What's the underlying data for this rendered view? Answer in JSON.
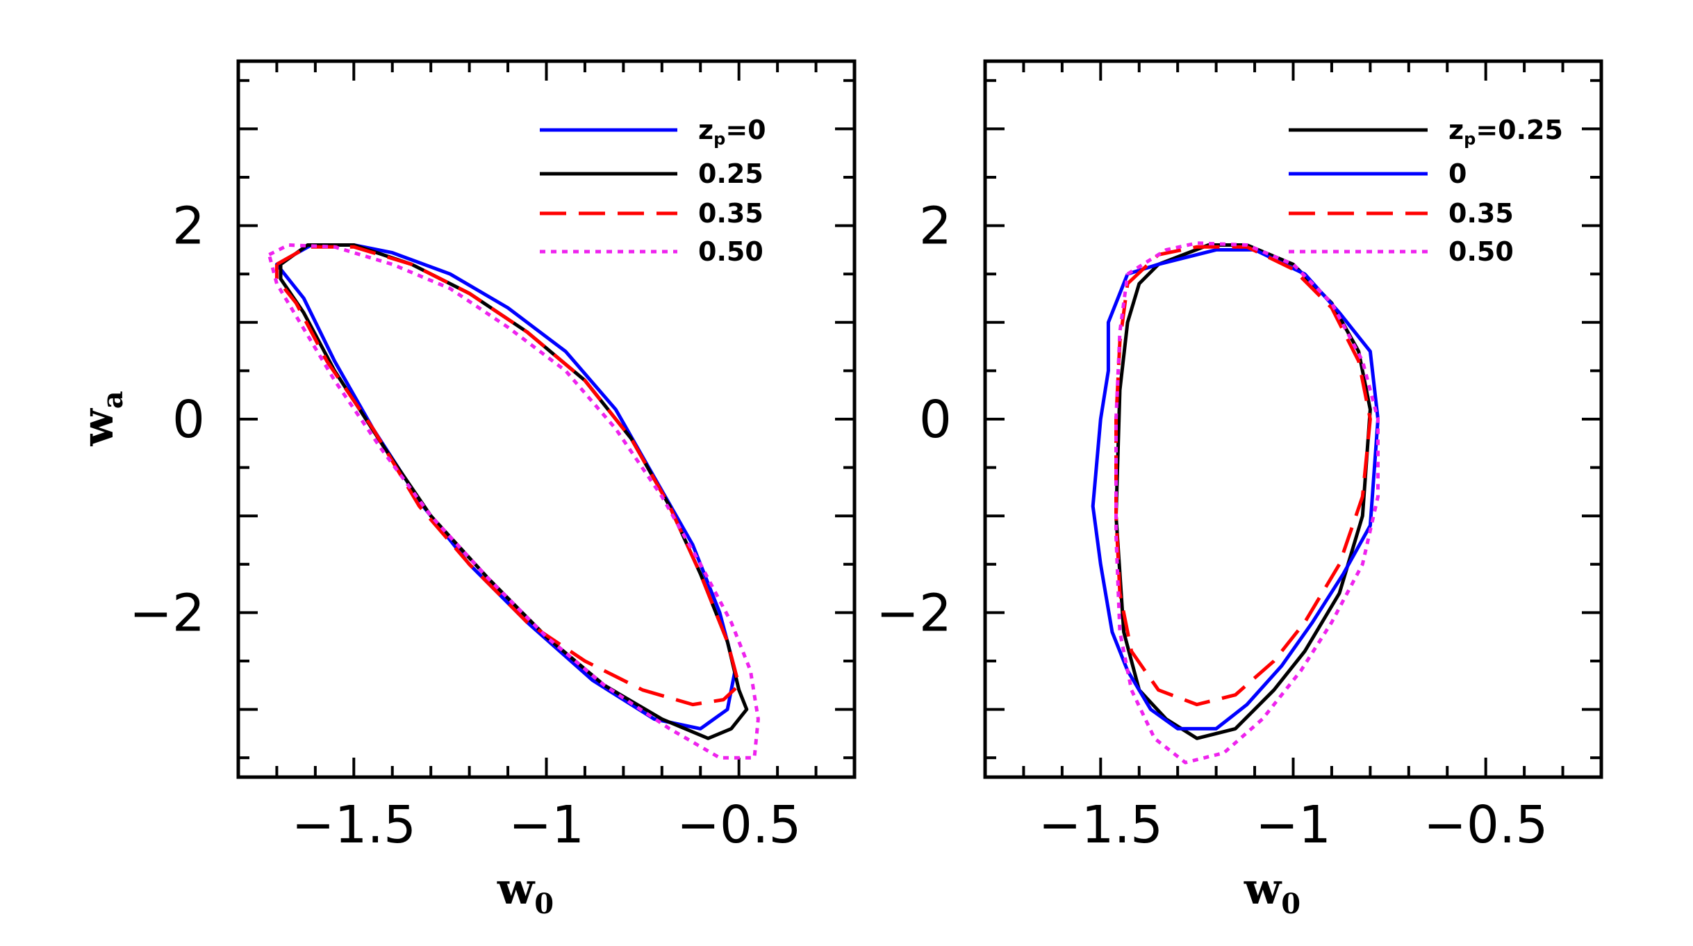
{
  "chart_data": [
    {
      "type": "line",
      "panel": "left",
      "xlabel": "w",
      "xlabel_sub": "0",
      "ylabel": "w",
      "ylabel_sub": "a",
      "xlim": [
        -1.8,
        -0.2
      ],
      "ylim": [
        -3.7,
        3.7
      ],
      "xticks": [
        -1.5,
        -1,
        -0.5
      ],
      "xtick_labels": [
        "−1.5",
        "−1",
        "−0.5"
      ],
      "yticks": [
        -2,
        0,
        2
      ],
      "ytick_labels": [
        "−2",
        "0",
        "2"
      ],
      "legend_position": "top-right",
      "series": [
        {
          "name": "zp=0",
          "label_main": "z",
          "label_sub": "p",
          "label_tail": "=0",
          "color": "#0000ff",
          "dash": "solid",
          "points": [
            [
              -1.61,
              1.8
            ],
            [
              -1.5,
              1.8
            ],
            [
              -1.4,
              1.72
            ],
            [
              -1.25,
              1.5
            ],
            [
              -1.1,
              1.15
            ],
            [
              -0.95,
              0.7
            ],
            [
              -0.82,
              0.1
            ],
            [
              -0.72,
              -0.6
            ],
            [
              -0.62,
              -1.3
            ],
            [
              -0.55,
              -2.0
            ],
            [
              -0.51,
              -2.6
            ],
            [
              -0.53,
              -3.0
            ],
            [
              -0.6,
              -3.2
            ],
            [
              -0.72,
              -3.1
            ],
            [
              -0.88,
              -2.7
            ],
            [
              -1.05,
              -2.1
            ],
            [
              -1.2,
              -1.5
            ],
            [
              -1.32,
              -0.9
            ],
            [
              -1.45,
              -0.1
            ],
            [
              -1.55,
              0.6
            ],
            [
              -1.63,
              1.25
            ],
            [
              -1.7,
              1.6
            ],
            [
              -1.61,
              1.8
            ]
          ]
        },
        {
          "name": "0.25",
          "label_main": "0.25",
          "color": "#000000",
          "dash": "solid",
          "points": [
            [
              -1.69,
              1.6
            ],
            [
              -1.62,
              1.8
            ],
            [
              -1.5,
              1.8
            ],
            [
              -1.35,
              1.6
            ],
            [
              -1.2,
              1.3
            ],
            [
              -1.05,
              0.9
            ],
            [
              -0.9,
              0.4
            ],
            [
              -0.78,
              -0.2
            ],
            [
              -0.68,
              -0.9
            ],
            [
              -0.6,
              -1.6
            ],
            [
              -0.53,
              -2.3
            ],
            [
              -0.5,
              -2.8
            ],
            [
              -0.48,
              -3.0
            ],
            [
              -0.52,
              -3.2
            ],
            [
              -0.58,
              -3.3
            ],
            [
              -0.7,
              -3.1
            ],
            [
              -0.85,
              -2.75
            ],
            [
              -1.0,
              -2.25
            ],
            [
              -1.15,
              -1.65
            ],
            [
              -1.3,
              -1.0
            ],
            [
              -1.42,
              -0.3
            ],
            [
              -1.55,
              0.5
            ],
            [
              -1.63,
              1.1
            ],
            [
              -1.69,
              1.45
            ],
            [
              -1.69,
              1.6
            ]
          ]
        },
        {
          "name": "0.35",
          "label_main": "0.35",
          "color": "#ff0000",
          "dash": "dashed",
          "points": [
            [
              -1.7,
              1.6
            ],
            [
              -1.62,
              1.78
            ],
            [
              -1.5,
              1.78
            ],
            [
              -1.35,
              1.6
            ],
            [
              -1.2,
              1.3
            ],
            [
              -1.05,
              0.9
            ],
            [
              -0.9,
              0.4
            ],
            [
              -0.78,
              -0.2
            ],
            [
              -0.68,
              -0.9
            ],
            [
              -0.6,
              -1.6
            ],
            [
              -0.53,
              -2.3
            ],
            [
              -0.5,
              -2.75
            ],
            [
              -0.54,
              -2.9
            ],
            [
              -0.62,
              -2.95
            ],
            [
              -0.75,
              -2.8
            ],
            [
              -0.9,
              -2.5
            ],
            [
              -1.05,
              -2.1
            ],
            [
              -1.2,
              -1.5
            ],
            [
              -1.33,
              -0.9
            ],
            [
              -1.45,
              -0.1
            ],
            [
              -1.57,
              0.6
            ],
            [
              -1.65,
              1.2
            ],
            [
              -1.7,
              1.45
            ],
            [
              -1.7,
              1.6
            ]
          ]
        },
        {
          "name": "0.50",
          "label_main": "0.50",
          "color": "#ee22ee",
          "dash": "dotted",
          "points": [
            [
              -1.72,
              1.7
            ],
            [
              -1.67,
              1.8
            ],
            [
              -1.55,
              1.78
            ],
            [
              -1.4,
              1.6
            ],
            [
              -1.25,
              1.35
            ],
            [
              -1.1,
              0.95
            ],
            [
              -0.95,
              0.5
            ],
            [
              -0.82,
              -0.1
            ],
            [
              -0.7,
              -0.8
            ],
            [
              -0.6,
              -1.5
            ],
            [
              -0.52,
              -2.1
            ],
            [
              -0.47,
              -2.6
            ],
            [
              -0.45,
              -3.1
            ],
            [
              -0.46,
              -3.5
            ],
            [
              -0.55,
              -3.5
            ],
            [
              -0.68,
              -3.2
            ],
            [
              -0.85,
              -2.75
            ],
            [
              -1.0,
              -2.25
            ],
            [
              -1.15,
              -1.65
            ],
            [
              -1.3,
              -1.0
            ],
            [
              -1.43,
              -0.3
            ],
            [
              -1.55,
              0.4
            ],
            [
              -1.64,
              1.0
            ],
            [
              -1.7,
              1.4
            ],
            [
              -1.72,
              1.7
            ]
          ]
        }
      ]
    },
    {
      "type": "line",
      "panel": "right",
      "xlabel": "w",
      "xlabel_sub": "0",
      "ylabel": "",
      "ylabel_sub": "",
      "xlim": [
        -1.8,
        -0.2
      ],
      "ylim": [
        -3.7,
        3.7
      ],
      "xticks": [
        -1.5,
        -1,
        -0.5
      ],
      "xtick_labels": [
        "−1.5",
        "−1",
        "−0.5"
      ],
      "yticks": [
        -2,
        0,
        2
      ],
      "ytick_labels": [
        "−2",
        "0",
        "2"
      ],
      "legend_position": "top-right",
      "series": [
        {
          "name": "zp=0.25",
          "label_main": "z",
          "label_sub": "p",
          "label_tail": "=0.25",
          "color": "#000000",
          "dash": "solid",
          "points": [
            [
              -1.35,
              1.6
            ],
            [
              -1.22,
              1.8
            ],
            [
              -1.12,
              1.8
            ],
            [
              -1.0,
              1.6
            ],
            [
              -0.9,
              1.2
            ],
            [
              -0.83,
              0.7
            ],
            [
              -0.8,
              0.1
            ],
            [
              -0.82,
              -1.0
            ],
            [
              -0.88,
              -1.8
            ],
            [
              -0.97,
              -2.4
            ],
            [
              -1.05,
              -2.8
            ],
            [
              -1.15,
              -3.2
            ],
            [
              -1.25,
              -3.3
            ],
            [
              -1.33,
              -3.1
            ],
            [
              -1.4,
              -2.8
            ],
            [
              -1.44,
              -2.2
            ],
            [
              -1.46,
              -1.0
            ],
            [
              -1.45,
              0.3
            ],
            [
              -1.43,
              1.0
            ],
            [
              -1.4,
              1.4
            ],
            [
              -1.35,
              1.6
            ]
          ]
        },
        {
          "name": "0",
          "label_main": "0",
          "color": "#0000ff",
          "dash": "solid",
          "points": [
            [
              -1.43,
              1.5
            ],
            [
              -1.35,
              1.6
            ],
            [
              -1.2,
              1.75
            ],
            [
              -1.1,
              1.75
            ],
            [
              -0.97,
              1.5
            ],
            [
              -0.88,
              1.1
            ],
            [
              -0.8,
              0.7
            ],
            [
              -0.78,
              0.0
            ],
            [
              -0.8,
              -1.1
            ],
            [
              -0.87,
              -1.6
            ],
            [
              -0.95,
              -2.1
            ],
            [
              -1.03,
              -2.55
            ],
            [
              -1.12,
              -2.95
            ],
            [
              -1.2,
              -3.2
            ],
            [
              -1.3,
              -3.2
            ],
            [
              -1.37,
              -3.0
            ],
            [
              -1.43,
              -2.6
            ],
            [
              -1.47,
              -2.2
            ],
            [
              -1.5,
              -1.5
            ],
            [
              -1.52,
              -0.9
            ],
            [
              -1.5,
              0.0
            ],
            [
              -1.48,
              0.5
            ],
            [
              -1.48,
              1.0
            ],
            [
              -1.45,
              1.3
            ],
            [
              -1.43,
              1.5
            ]
          ]
        },
        {
          "name": "0.35",
          "label_main": "0.35",
          "color": "#ff0000",
          "dash": "dashed",
          "points": [
            [
              -1.43,
              1.4
            ],
            [
              -1.35,
              1.7
            ],
            [
              -1.25,
              1.78
            ],
            [
              -1.12,
              1.78
            ],
            [
              -1.0,
              1.55
            ],
            [
              -0.9,
              1.15
            ],
            [
              -0.83,
              0.6
            ],
            [
              -0.8,
              0.0
            ],
            [
              -0.82,
              -0.8
            ],
            [
              -0.88,
              -1.5
            ],
            [
              -0.97,
              -2.1
            ],
            [
              -1.05,
              -2.5
            ],
            [
              -1.15,
              -2.85
            ],
            [
              -1.25,
              -2.95
            ],
            [
              -1.35,
              -2.8
            ],
            [
              -1.42,
              -2.4
            ],
            [
              -1.45,
              -1.8
            ],
            [
              -1.46,
              -1.0
            ],
            [
              -1.46,
              0.0
            ],
            [
              -1.45,
              0.8
            ],
            [
              -1.43,
              1.4
            ]
          ]
        },
        {
          "name": "0.50",
          "label_main": "0.50",
          "color": "#ee22ee",
          "dash": "dotted",
          "points": [
            [
              -1.43,
              1.5
            ],
            [
              -1.33,
              1.75
            ],
            [
              -1.25,
              1.82
            ],
            [
              -1.12,
              1.8
            ],
            [
              -1.0,
              1.6
            ],
            [
              -0.9,
              1.2
            ],
            [
              -0.82,
              0.6
            ],
            [
              -0.78,
              0.0
            ],
            [
              -0.78,
              -0.8
            ],
            [
              -0.82,
              -1.5
            ],
            [
              -0.9,
              -2.1
            ],
            [
              -0.98,
              -2.6
            ],
            [
              -1.08,
              -3.1
            ],
            [
              -1.18,
              -3.45
            ],
            [
              -1.28,
              -3.55
            ],
            [
              -1.36,
              -3.3
            ],
            [
              -1.42,
              -2.8
            ],
            [
              -1.45,
              -2.2
            ],
            [
              -1.46,
              -1.2
            ],
            [
              -1.46,
              0.0
            ],
            [
              -1.45,
              0.9
            ],
            [
              -1.43,
              1.5
            ]
          ]
        }
      ]
    }
  ]
}
